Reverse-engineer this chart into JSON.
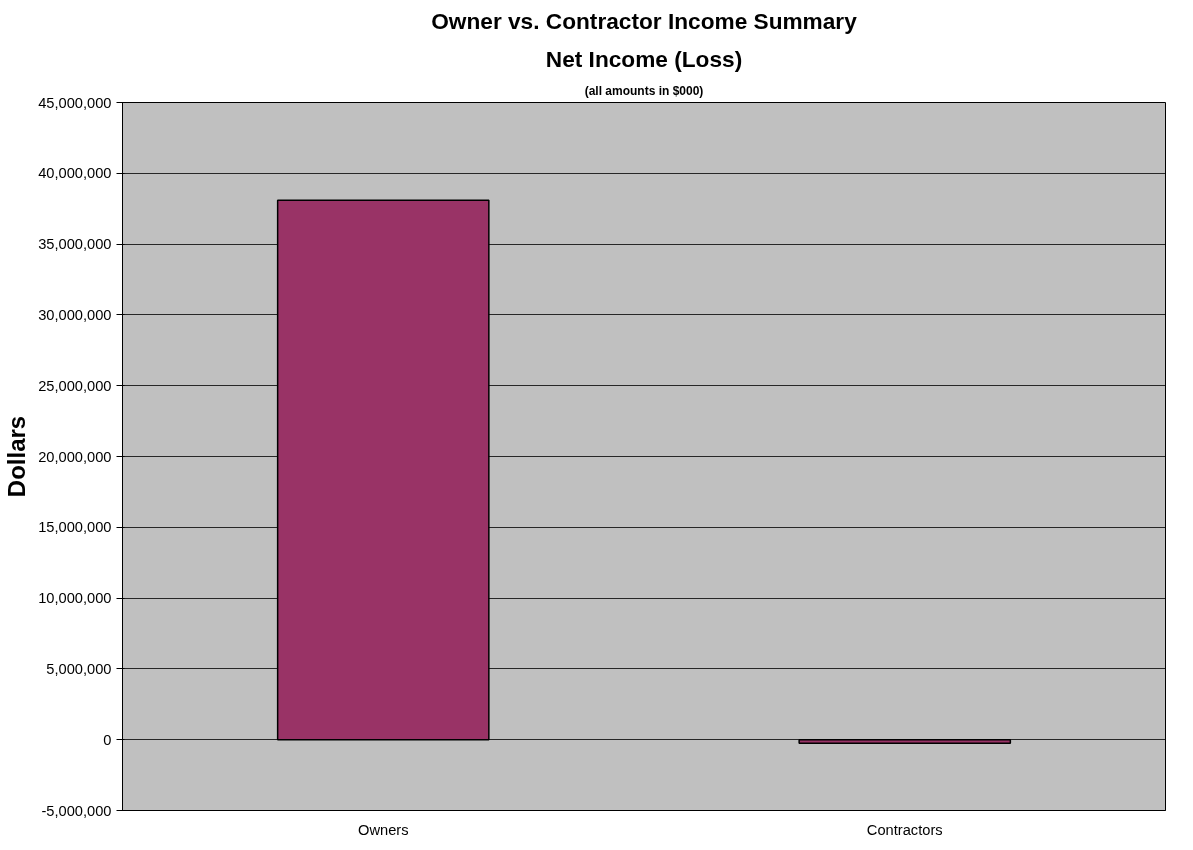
{
  "chart_data": {
    "type": "bar",
    "title": "Owner vs. Contractor Income Summary",
    "subtitle": "Net Income (Loss)",
    "annotations": [
      "(all amounts in $000)"
    ],
    "ylabel": "Dollars",
    "categories": [
      "Owners",
      "Contractors"
    ],
    "values": [
      38100000,
      -250000
    ],
    "color": "#993366",
    "ylim": [
      -5000000,
      45000000
    ],
    "yticks": [
      {
        "value": -5000000,
        "label": "-5,000,000"
      },
      {
        "value": 0,
        "label": "0"
      },
      {
        "value": 5000000,
        "label": "5,000,000"
      },
      {
        "value": 10000000,
        "label": "10,000,000"
      },
      {
        "value": 15000000,
        "label": "15,000,000"
      },
      {
        "value": 20000000,
        "label": "20,000,000"
      },
      {
        "value": 25000000,
        "label": "25,000,000"
      },
      {
        "value": 30000000,
        "label": "30,000,000"
      },
      {
        "value": 35000000,
        "label": "35,000,000"
      },
      {
        "value": 40000000,
        "label": "40,000,000"
      },
      {
        "value": 45000000,
        "label": "45,000,000"
      }
    ],
    "grid": "y"
  }
}
